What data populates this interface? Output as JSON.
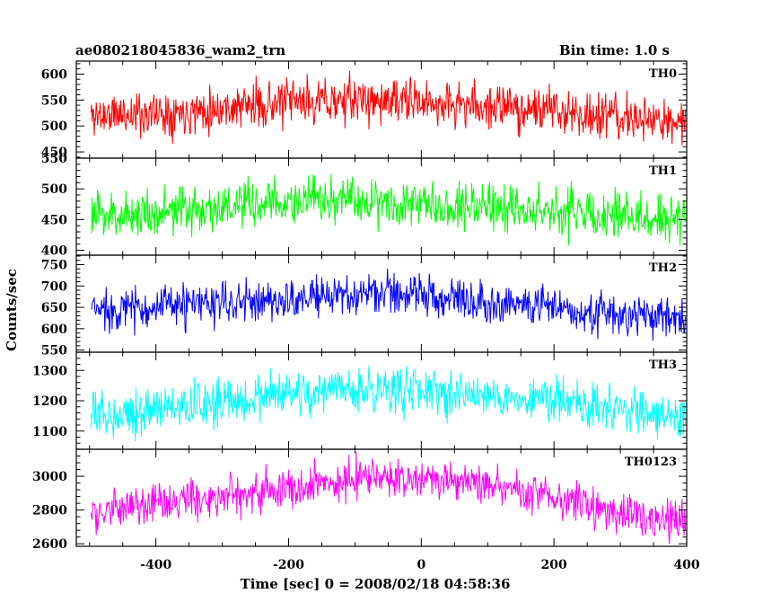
{
  "chart_data": {
    "type": "line",
    "title": "ae080218045836_wam2_trn",
    "bin_time": "Bin time: 1.0 s",
    "xlabel": "Time [sec] 0 = 2008/02/18 04:58:36",
    "ylabel": "Counts/sec",
    "xlim": [
      -520,
      400
    ],
    "xticks": [
      -400,
      -200,
      0,
      200,
      400
    ],
    "x_start": -498,
    "x_end": 398,
    "x_step": 1,
    "panels": [
      {
        "name": "TH0",
        "color": "#ff0000",
        "ylim": [
          438,
          625
        ],
        "yticks": [
          450,
          500,
          550,
          600
        ],
        "trend": [
          [
            -498,
            520
          ],
          [
            -400,
            525
          ],
          [
            -200,
            545
          ],
          [
            -100,
            550
          ],
          [
            0,
            545
          ],
          [
            200,
            530
          ],
          [
            300,
            515
          ],
          [
            398,
            505
          ]
        ],
        "noise": 28,
        "seed": 11
      },
      {
        "name": "TH1",
        "color": "#00ff00",
        "ylim": [
          392,
          550
        ],
        "yticks": [
          400,
          450,
          500,
          550
        ],
        "trend": [
          [
            -498,
            455
          ],
          [
            -400,
            462
          ],
          [
            -200,
            478
          ],
          [
            -100,
            482
          ],
          [
            0,
            478
          ],
          [
            200,
            465
          ],
          [
            300,
            455
          ],
          [
            398,
            450
          ]
        ],
        "noise": 25,
        "seed": 23
      },
      {
        "name": "TH2",
        "color": "#0000ff",
        "ylim": [
          545,
          772
        ],
        "yticks": [
          550,
          600,
          650,
          700,
          750
        ],
        "trend": [
          [
            -498,
            645
          ],
          [
            -400,
            650
          ],
          [
            -200,
            668
          ],
          [
            -50,
            685
          ],
          [
            0,
            680
          ],
          [
            100,
            665
          ],
          [
            200,
            650
          ],
          [
            300,
            630
          ],
          [
            398,
            625
          ]
        ],
        "noise": 32,
        "seed": 37
      },
      {
        "name": "TH3",
        "color": "#00ffff",
        "ylim": [
          1040,
          1360
        ],
        "yticks": [
          1100,
          1200,
          1300
        ],
        "trend": [
          [
            -498,
            1150
          ],
          [
            -400,
            1170
          ],
          [
            -200,
            1220
          ],
          [
            -50,
            1240
          ],
          [
            0,
            1235
          ],
          [
            200,
            1200
          ],
          [
            300,
            1170
          ],
          [
            398,
            1145
          ]
        ],
        "noise": 48,
        "seed": 53
      },
      {
        "name": "TH0123",
        "color": "#ff00ff",
        "ylim": [
          2585,
          3160
        ],
        "yticks": [
          2600,
          2800,
          3000
        ],
        "trend": [
          [
            -498,
            2780
          ],
          [
            -400,
            2830
          ],
          [
            -200,
            2940
          ],
          [
            -100,
            2990
          ],
          [
            0,
            2990
          ],
          [
            100,
            2950
          ],
          [
            200,
            2880
          ],
          [
            300,
            2780
          ],
          [
            398,
            2720
          ]
        ],
        "noise": 75,
        "seed": 71
      }
    ]
  }
}
